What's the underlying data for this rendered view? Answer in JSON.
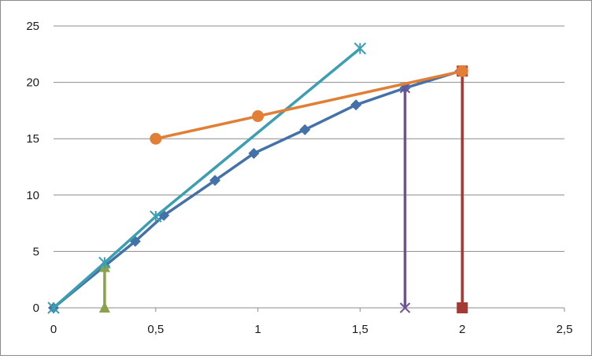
{
  "chart_data": {
    "type": "scatter",
    "title": "",
    "xlabel": "",
    "ylabel": "",
    "xlim": [
      0,
      2.5
    ],
    "ylim": [
      0,
      25
    ],
    "x_ticks": [
      "0",
      "0,5",
      "1",
      "1,5",
      "2",
      "2,5"
    ],
    "y_ticks": [
      "0",
      "5",
      "10",
      "15",
      "20",
      "25"
    ],
    "grid": "horizontal",
    "legend": "none",
    "series": [
      {
        "color": "#4472A8",
        "marker": "diamond",
        "points": [
          [
            0,
            0
          ],
          [
            0.25,
            3.7
          ],
          [
            0.4,
            5.9
          ],
          [
            0.54,
            8.2
          ],
          [
            0.79,
            11.3
          ],
          [
            0.98,
            13.7
          ],
          [
            1.23,
            15.8
          ],
          [
            1.48,
            18.0
          ],
          [
            1.72,
            19.5
          ],
          [
            1.99,
            21.0
          ]
        ]
      },
      {
        "color": "#A33A36",
        "marker": "square",
        "points": [
          [
            2.0,
            0
          ],
          [
            2.0,
            21.0
          ]
        ]
      },
      {
        "color": "#8AA24B",
        "marker": "triangle",
        "points": [
          [
            0.25,
            0
          ],
          [
            0.25,
            3.6
          ]
        ]
      },
      {
        "color": "#6E5294",
        "marker": "x",
        "points": [
          [
            1.72,
            0
          ],
          [
            1.72,
            19.5
          ]
        ]
      },
      {
        "color": "#3C9EB2",
        "marker": "asterisk",
        "points": [
          [
            0,
            0
          ],
          [
            0.25,
            4.0
          ],
          [
            0.5,
            8.1
          ],
          [
            1.5,
            23.0
          ]
        ]
      },
      {
        "color": "#E07F35",
        "marker": "circle",
        "points": [
          [
            0.5,
            15.0
          ],
          [
            1.0,
            17.0
          ],
          [
            2.0,
            21.0
          ]
        ]
      }
    ]
  }
}
